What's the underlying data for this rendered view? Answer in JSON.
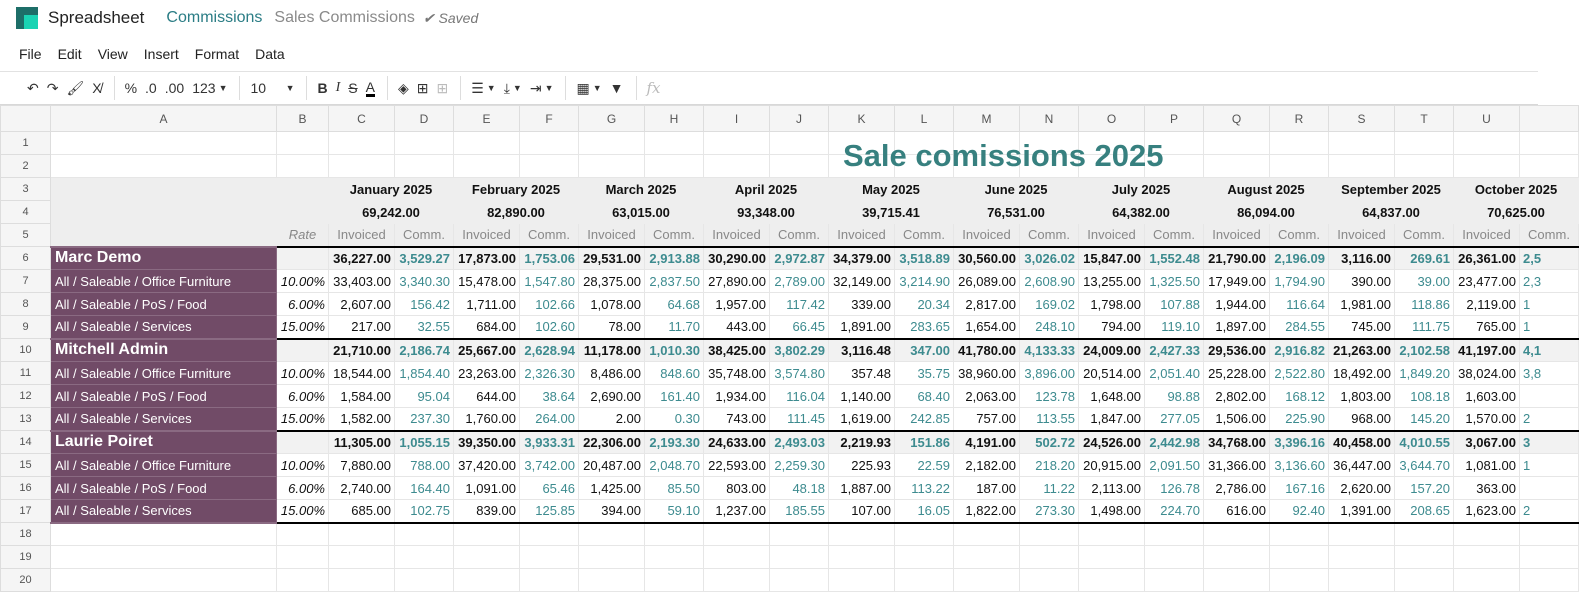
{
  "header": {
    "app": "Spreadsheet",
    "breadcrumb": "Commissions",
    "document": "Sales Commissions",
    "status": "Saved"
  },
  "menu": [
    "File",
    "Edit",
    "View",
    "Insert",
    "Format",
    "Data"
  ],
  "toolbar": {
    "percent": "%",
    "dec_less": ".0",
    "dec_more": ".00",
    "format": "123",
    "font_size": "10",
    "fx": "fx"
  },
  "columns": [
    "A",
    "B",
    "C",
    "D",
    "E",
    "F",
    "G",
    "H",
    "I",
    "J",
    "K",
    "L",
    "M",
    "N",
    "O",
    "P",
    "Q",
    "R",
    "S",
    "T",
    "U"
  ],
  "sheet": {
    "title": "Sale comissions 2025",
    "rate_label": "Rate",
    "invoiced_label": "Invoiced",
    "comm_label": "Comm.",
    "months": [
      {
        "name": "January 2025",
        "total": "69,242.00"
      },
      {
        "name": "February 2025",
        "total": "82,890.00"
      },
      {
        "name": "March 2025",
        "total": "63,015.00"
      },
      {
        "name": "April 2025",
        "total": "93,348.00"
      },
      {
        "name": "May 2025",
        "total": "39,715.41"
      },
      {
        "name": "June 2025",
        "total": "76,531.00"
      },
      {
        "name": "July 2025",
        "total": "64,382.00"
      },
      {
        "name": "August 2025",
        "total": "86,094.00"
      },
      {
        "name": "September 2025",
        "total": "64,837.00"
      },
      {
        "name": "October 2025",
        "total": "70,625.00"
      }
    ],
    "people": [
      {
        "name": "Marc Demo",
        "values": [
          "36,227.00",
          "3,529.27",
          "17,873.00",
          "1,753.06",
          "29,531.00",
          "2,913.88",
          "30,290.00",
          "2,972.87",
          "34,379.00",
          "3,518.89",
          "30,560.00",
          "3,026.02",
          "15,847.00",
          "1,552.48",
          "21,790.00",
          "2,196.09",
          "3,116.00",
          "269.61",
          "26,361.00",
          "2,5"
        ],
        "rows": [
          {
            "label": "All / Saleable / Office Furniture",
            "rate": "10.00%",
            "values": [
              "33,403.00",
              "3,340.30",
              "15,478.00",
              "1,547.80",
              "28,375.00",
              "2,837.50",
              "27,890.00",
              "2,789.00",
              "32,149.00",
              "3,214.90",
              "26,089.00",
              "2,608.90",
              "13,255.00",
              "1,325.50",
              "17,949.00",
              "1,794.90",
              "390.00",
              "39.00",
              "23,477.00",
              "2,3"
            ]
          },
          {
            "label": "All / Saleable / PoS / Food",
            "rate": "6.00%",
            "values": [
              "2,607.00",
              "156.42",
              "1,711.00",
              "102.66",
              "1,078.00",
              "64.68",
              "1,957.00",
              "117.42",
              "339.00",
              "20.34",
              "2,817.00",
              "169.02",
              "1,798.00",
              "107.88",
              "1,944.00",
              "116.64",
              "1,981.00",
              "118.86",
              "2,119.00",
              "1"
            ]
          },
          {
            "label": "All / Saleable / Services",
            "rate": "15.00%",
            "values": [
              "217.00",
              "32.55",
              "684.00",
              "102.60",
              "78.00",
              "11.70",
              "443.00",
              "66.45",
              "1,891.00",
              "283.65",
              "1,654.00",
              "248.10",
              "794.00",
              "119.10",
              "1,897.00",
              "284.55",
              "745.00",
              "111.75",
              "765.00",
              "1"
            ]
          }
        ]
      },
      {
        "name": "Mitchell Admin",
        "values": [
          "21,710.00",
          "2,186.74",
          "25,667.00",
          "2,628.94",
          "11,178.00",
          "1,010.30",
          "38,425.00",
          "3,802.29",
          "3,116.48",
          "347.00",
          "41,780.00",
          "4,133.33",
          "24,009.00",
          "2,427.33",
          "29,536.00",
          "2,916.82",
          "21,263.00",
          "2,102.58",
          "41,197.00",
          "4,1"
        ],
        "rows": [
          {
            "label": "All / Saleable / Office Furniture",
            "rate": "10.00%",
            "values": [
              "18,544.00",
              "1,854.40",
              "23,263.00",
              "2,326.30",
              "8,486.00",
              "848.60",
              "35,748.00",
              "3,574.80",
              "357.48",
              "35.75",
              "38,960.00",
              "3,896.00",
              "20,514.00",
              "2,051.40",
              "25,228.00",
              "2,522.80",
              "18,492.00",
              "1,849.20",
              "38,024.00",
              "3,8"
            ]
          },
          {
            "label": "All / Saleable / PoS / Food",
            "rate": "6.00%",
            "values": [
              "1,584.00",
              "95.04",
              "644.00",
              "38.64",
              "2,690.00",
              "161.40",
              "1,934.00",
              "116.04",
              "1,140.00",
              "68.40",
              "2,063.00",
              "123.78",
              "1,648.00",
              "98.88",
              "2,802.00",
              "168.12",
              "1,803.00",
              "108.18",
              "1,603.00",
              ""
            ]
          },
          {
            "label": "All / Saleable / Services",
            "rate": "15.00%",
            "values": [
              "1,582.00",
              "237.30",
              "1,760.00",
              "264.00",
              "2.00",
              "0.30",
              "743.00",
              "111.45",
              "1,619.00",
              "242.85",
              "757.00",
              "113.55",
              "1,847.00",
              "277.05",
              "1,506.00",
              "225.90",
              "968.00",
              "145.20",
              "1,570.00",
              "2"
            ]
          }
        ]
      },
      {
        "name": "Laurie Poiret",
        "values": [
          "11,305.00",
          "1,055.15",
          "39,350.00",
          "3,933.31",
          "22,306.00",
          "2,193.30",
          "24,633.00",
          "2,493.03",
          "2,219.93",
          "151.86",
          "4,191.00",
          "502.72",
          "24,526.00",
          "2,442.98",
          "34,768.00",
          "3,396.16",
          "40,458.00",
          "4,010.55",
          "3,067.00",
          "3"
        ],
        "rows": [
          {
            "label": "All / Saleable / Office Furniture",
            "rate": "10.00%",
            "values": [
              "7,880.00",
              "788.00",
              "37,420.00",
              "3,742.00",
              "20,487.00",
              "2,048.70",
              "22,593.00",
              "2,259.30",
              "225.93",
              "22.59",
              "2,182.00",
              "218.20",
              "20,915.00",
              "2,091.50",
              "31,366.00",
              "3,136.60",
              "36,447.00",
              "3,644.70",
              "1,081.00",
              "1"
            ]
          },
          {
            "label": "All / Saleable / PoS / Food",
            "rate": "6.00%",
            "values": [
              "2,740.00",
              "164.40",
              "1,091.00",
              "65.46",
              "1,425.00",
              "85.50",
              "803.00",
              "48.18",
              "1,887.00",
              "113.22",
              "187.00",
              "11.22",
              "2,113.00",
              "126.78",
              "2,786.00",
              "167.16",
              "2,620.00",
              "157.20",
              "363.00",
              ""
            ]
          },
          {
            "label": "All / Saleable / Services",
            "rate": "15.00%",
            "values": [
              "685.00",
              "102.75",
              "839.00",
              "125.85",
              "394.00",
              "59.10",
              "1,237.00",
              "185.55",
              "107.00",
              "16.05",
              "1,822.00",
              "273.30",
              "1,498.00",
              "224.70",
              "616.00",
              "92.40",
              "1,391.00",
              "208.65",
              "1,623.00",
              "2"
            ]
          }
        ]
      }
    ]
  },
  "colors": {
    "brand": "#1ad3b3",
    "accent": "#2b7d85",
    "label_bg": "#714b67",
    "comm_text": "#3d8b8f",
    "title": "#37807f"
  }
}
